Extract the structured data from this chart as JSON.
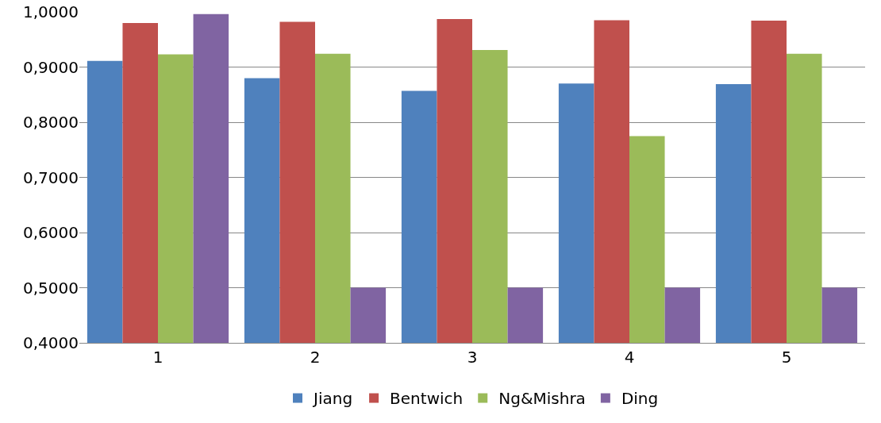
{
  "chart_data": {
    "type": "bar",
    "categories": [
      "1",
      "2",
      "3",
      "4",
      "5"
    ],
    "series": [
      {
        "name": "Jiang",
        "color": "#4f81bd",
        "values": [
          0.911,
          0.88,
          0.857,
          0.87,
          0.869
        ]
      },
      {
        "name": "Bentwich",
        "color": "#c0504d",
        "values": [
          0.98,
          0.982,
          0.987,
          0.985,
          0.984
        ]
      },
      {
        "name": "Ng&Mishra",
        "color": "#9bbb59",
        "values": [
          0.923,
          0.924,
          0.931,
          0.775,
          0.924
        ]
      },
      {
        "name": "Ding",
        "color": "#8064a2",
        "values": [
          0.996,
          0.5,
          0.5,
          0.5,
          0.5
        ]
      }
    ],
    "ylim": [
      0.4,
      1.0
    ],
    "yticks": [
      {
        "value": 0.4,
        "label": "0,4000"
      },
      {
        "value": 0.5,
        "label": "0,5000"
      },
      {
        "value": 0.6,
        "label": "0,6000"
      },
      {
        "value": 0.7,
        "label": "0,7000"
      },
      {
        "value": 0.8,
        "label": "0,8000"
      },
      {
        "value": 0.9,
        "label": "0,9000"
      },
      {
        "value": 1.0,
        "label": "1,0000"
      }
    ],
    "grid": "y",
    "legend": "bottom"
  }
}
